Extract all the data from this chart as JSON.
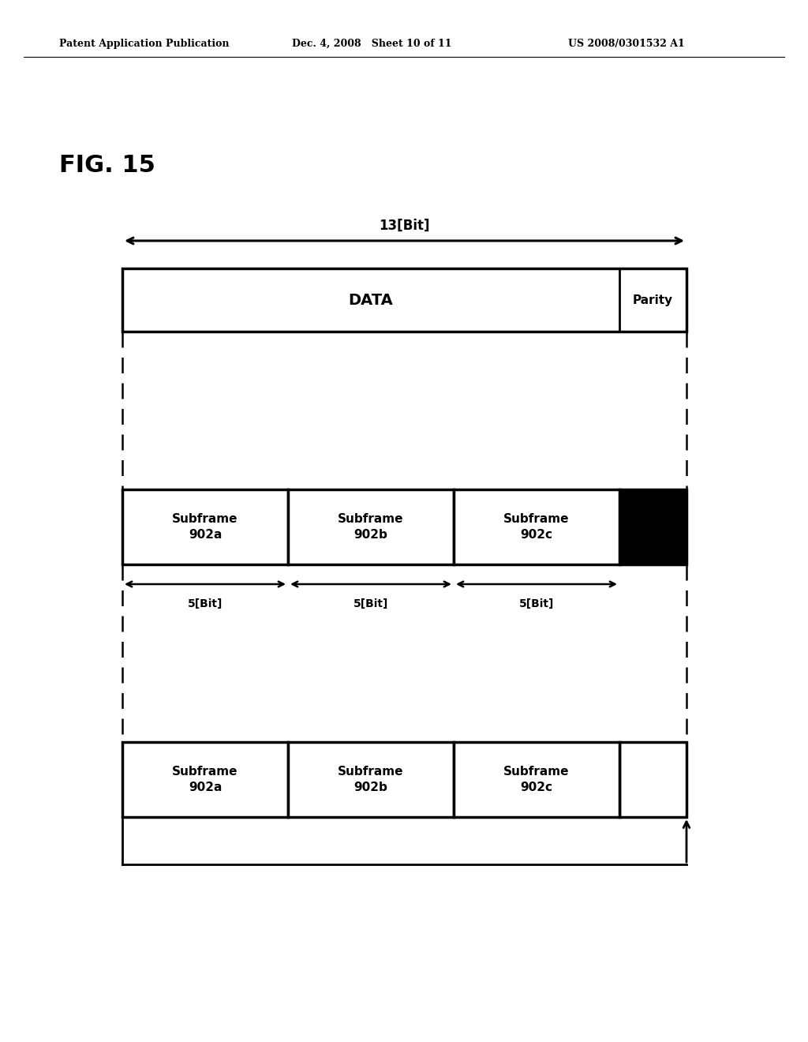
{
  "title": "FIG. 15",
  "header_left": "Patent Application Publication",
  "header_mid": "Dec. 4, 2008   Sheet 10 of 11",
  "header_right": "US 2008/0301532 A1",
  "background": "#ffffff",
  "arrow_13bit_label": "13[Bit]",
  "top_box_data_label": "DATA",
  "top_box_parity_label": "Parity",
  "subframe_labels": [
    "Subframe\n902a",
    "Subframe\n902b",
    "Subframe\n902c"
  ],
  "bit_labels": [
    "5[Bit]",
    "5[Bit]",
    "5[Bit]"
  ],
  "bottom_subframe_labels": [
    "Subframe\n902a",
    "Subframe\n902b",
    "Subframe\n902c"
  ]
}
